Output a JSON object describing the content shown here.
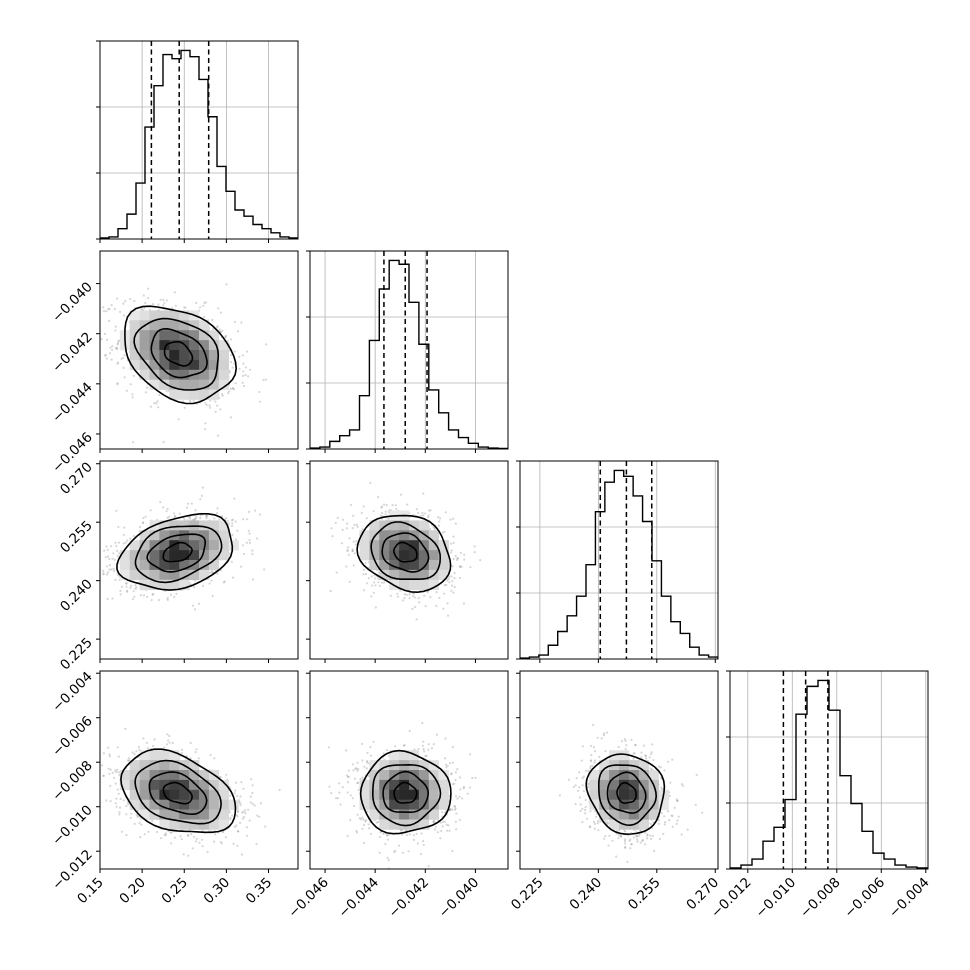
{
  "chart_data": {
    "type": "corner",
    "parameters": [
      {
        "range": [
          0.15,
          0.385
        ],
        "ticks": [
          0.15,
          0.2,
          0.25,
          0.3,
          0.35
        ],
        "tick_labels": [
          "0.15",
          "0.20",
          "0.25",
          "0.30",
          "0.35"
        ],
        "quantiles": [
          0.211,
          0.244,
          0.279
        ],
        "hist": [
          0.5,
          1,
          5,
          12,
          27,
          54,
          74,
          89,
          87,
          91,
          88,
          77,
          59,
          35,
          23,
          14,
          11,
          7,
          5,
          3,
          1,
          0.5
        ],
        "hist_max_tick": 3
      },
      {
        "range": [
          -0.0466,
          -0.0387
        ],
        "ticks": [
          -0.046,
          -0.044,
          -0.042,
          -0.04
        ],
        "tick_labels": [
          "−0.046",
          "−0.044",
          "−0.042",
          "−0.040"
        ],
        "quantiles": [
          -0.04365,
          -0.0428,
          -0.04193
        ],
        "hist": [
          0.5,
          1,
          4,
          7,
          10,
          28,
          57,
          84,
          99,
          97,
          77,
          55,
          31,
          19,
          10,
          6,
          3,
          1,
          0.5,
          0.3
        ],
        "hist_max_tick": 3
      },
      {
        "range": [
          0.2199,
          0.2707
        ],
        "ticks": [
          0.225,
          0.24,
          0.255,
          0.27
        ],
        "tick_labels": [
          "0.225",
          "0.240",
          "0.255",
          "0.270"
        ],
        "quantiles": [
          0.2405,
          0.2472,
          0.2537
        ],
        "hist": [
          0.5,
          1,
          2,
          7,
          14,
          22,
          32,
          48,
          75,
          90,
          96,
          93,
          83,
          70,
          50,
          32,
          19,
          13,
          6,
          2,
          1
        ],
        "hist_max_tick": 3
      },
      {
        "range": [
          -0.0128,
          -0.0039
        ],
        "ticks": [
          -0.012,
          -0.01,
          -0.008,
          -0.006,
          -0.004
        ],
        "tick_labels": [
          "−0.012",
          "−0.010",
          "−0.008",
          "−0.006",
          "−0.004"
        ],
        "quantiles": [
          -0.0104,
          -0.0094,
          -0.0084
        ],
        "hist": [
          0.5,
          2,
          5,
          14,
          21,
          35,
          78,
          92,
          95,
          80,
          47,
          33,
          19,
          8,
          5,
          2,
          1,
          0.5
        ],
        "hist_max_tick": 3
      }
    ],
    "grid": true,
    "contour_levels": 4,
    "pairs": [
      {
        "i": 1,
        "j": 0,
        "center": [
          0.243,
          -0.0428
        ],
        "sigma": [
          0.033,
          0.00095
        ],
        "rho": -0.3
      },
      {
        "i": 2,
        "j": 0,
        "center": [
          0.242,
          0.2472
        ],
        "sigma": [
          0.034,
          0.0048
        ],
        "rho": 0.3
      },
      {
        "i": 2,
        "j": 1,
        "center": [
          -0.0428,
          0.2472
        ],
        "sigma": [
          0.00092,
          0.0049
        ],
        "rho": -0.2
      },
      {
        "i": 3,
        "j": 0,
        "center": [
          0.242,
          -0.0094
        ],
        "sigma": [
          0.034,
          0.00093
        ],
        "rho": -0.35
      },
      {
        "i": 3,
        "j": 1,
        "center": [
          -0.0428,
          -0.0094
        ],
        "sigma": [
          0.0009,
          0.00091
        ],
        "rho": 0.0
      },
      {
        "i": 3,
        "j": 2,
        "center": [
          0.2472,
          -0.0094
        ],
        "sigma": [
          0.0049,
          0.0009
        ],
        "rho": -0.1
      }
    ]
  }
}
